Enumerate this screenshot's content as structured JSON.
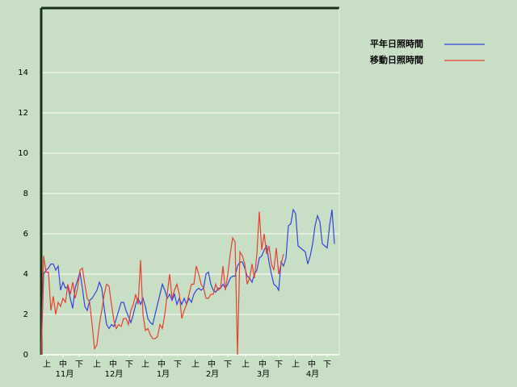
{
  "chart_data": {
    "type": "line",
    "x": [
      0,
      1.5,
      3,
      4.5,
      6,
      7.5,
      9,
      10.5,
      12,
      13.5,
      15,
      16.5,
      18,
      19.5,
      21,
      22.5,
      24,
      25.5,
      27,
      28.5,
      30,
      31.5,
      33,
      34.5,
      36,
      37.5,
      39,
      40.5,
      42,
      43.5,
      45,
      46.5,
      48,
      49.5,
      51,
      52.5,
      54,
      55.5,
      57,
      58.5,
      60,
      61.5,
      63,
      64.5,
      66,
      67.5,
      69,
      70.5,
      72,
      73.5,
      75,
      76.5,
      78,
      79.5,
      81,
      82.5,
      84,
      85.5,
      87,
      88.5,
      90,
      91.5,
      93,
      94.5,
      96,
      97.5,
      99,
      100.5,
      102,
      103.5,
      105,
      106.5,
      108,
      109.5,
      111,
      112.5,
      114,
      115.5,
      117,
      118.5,
      120,
      121.5,
      123,
      124.5,
      126,
      127.5,
      129,
      130.5,
      132,
      133.5,
      135,
      136.5,
      138,
      139.5,
      141,
      142.5,
      144,
      145.5,
      147,
      148.5,
      150,
      151.5,
      153,
      154.5,
      156,
      157.5,
      159,
      160.5,
      162,
      163.5,
      165,
      166.5,
      168,
      169.5,
      171,
      172.5,
      174,
      175.5,
      177,
      178.5,
      180,
      181.5
    ],
    "xlim": [
      0,
      184.5
    ],
    "xticks": [
      {
        "value": 3.5,
        "label": "上"
      },
      {
        "value": 13.5,
        "label": "中"
      },
      {
        "value": 23.5,
        "label": "下"
      },
      {
        "value": 34.5,
        "label": "上"
      },
      {
        "value": 44.5,
        "label": "中"
      },
      {
        "value": 54.5,
        "label": "下"
      },
      {
        "value": 64.5,
        "label": "上"
      },
      {
        "value": 74.5,
        "label": "中"
      },
      {
        "value": 84.5,
        "label": "下"
      },
      {
        "value": 95.5,
        "label": "上"
      },
      {
        "value": 105.5,
        "label": "中"
      },
      {
        "value": 115.5,
        "label": "下"
      },
      {
        "value": 126.5,
        "label": "上"
      },
      {
        "value": 137,
        "label": "中"
      },
      {
        "value": 147,
        "label": "下"
      },
      {
        "value": 157.5,
        "label": "上"
      },
      {
        "value": 167.5,
        "label": "中"
      },
      {
        "value": 177,
        "label": "下"
      }
    ],
    "month_labels": [
      {
        "value": 14.5,
        "label": "11月"
      },
      {
        "value": 45,
        "label": "12月"
      },
      {
        "value": 75.5,
        "label": "1月"
      },
      {
        "value": 106,
        "label": "2月"
      },
      {
        "value": 137.5,
        "label": "3月"
      },
      {
        "value": 168,
        "label": "4月"
      }
    ],
    "ylim": [
      0,
      17.2
    ],
    "yticks": [
      0,
      2,
      4,
      6,
      8,
      10,
      12,
      14
    ],
    "grid": true,
    "series": [
      {
        "name": "平年日照時間",
        "color": "#3344dd",
        "values": [
          0,
          4.0,
          4.2,
          4.3,
          4.5,
          4.5,
          4.2,
          4.4,
          3.2,
          3.6,
          3.3,
          3.4,
          2.8,
          2.3,
          3.3,
          3.7,
          4.1,
          3.3,
          2.4,
          2.2,
          2.7,
          2.8,
          3.0,
          3.2,
          3.6,
          3.3,
          2.3,
          1.5,
          1.3,
          1.5,
          1.4,
          1.8,
          2.2,
          2.6,
          2.6,
          2.2,
          1.9,
          1.6,
          2.0,
          2.5,
          2.8,
          2.5,
          2.8,
          2.4,
          1.8,
          1.6,
          1.5,
          2.0,
          2.5,
          3.0,
          3.5,
          3.2,
          2.8,
          3.0,
          2.7,
          3.0,
          2.5,
          2.8,
          2.5,
          2.8,
          2.5,
          2.8,
          2.6,
          3.0,
          3.2,
          3.3,
          3.2,
          3.3,
          4.0,
          4.1,
          3.5,
          3.2,
          3.1,
          3.3,
          3.3,
          3.5,
          3.3,
          3.5,
          3.8,
          3.9,
          3.9,
          4.4,
          4.6,
          4.6,
          4.3,
          3.9,
          3.8,
          3.6,
          4.0,
          4.2,
          4.8,
          4.9,
          5.2,
          5.4,
          4.6,
          4.0,
          3.5,
          3.4,
          3.2,
          4.6,
          4.4,
          4.8,
          6.4,
          6.5,
          7.2,
          7.0,
          5.4,
          5.3,
          5.2,
          5.1,
          4.5,
          4.9,
          5.5,
          6.4,
          6.9,
          6.6,
          5.5,
          5.4,
          5.3,
          6.4,
          7.2,
          5.5
        ]
      },
      {
        "name": "移動日照時間",
        "color": "#e84030",
        "values": [
          0,
          4.9,
          4.1,
          4.1,
          2.2,
          2.9,
          2.0,
          2.6,
          2.4,
          2.8,
          2.6,
          3.5,
          3.0,
          3.6,
          2.8,
          3.3,
          4.2,
          4.3,
          3.5,
          2.8,
          2.6,
          1.5,
          0.3,
          0.5,
          1.5,
          2.2,
          3.0,
          3.5,
          3.4,
          2.5,
          1.7,
          1.3,
          1.5,
          1.4,
          1.8,
          1.8,
          1.5,
          2.2,
          2.5,
          3.0,
          2.5,
          4.7,
          2.0,
          1.2,
          1.3,
          1.0,
          0.8,
          0.8,
          0.9,
          1.5,
          1.3,
          2.0,
          3.0,
          4.0,
          2.8,
          3.2,
          3.5,
          3.0,
          1.8,
          2.2,
          2.5,
          3.0,
          3.5,
          3.5,
          4.4,
          4.0,
          3.5,
          3.3,
          2.8,
          2.8,
          3.0,
          3.0,
          3.5,
          3.2,
          3.3,
          4.4,
          3.2,
          4.0,
          5.0,
          5.8,
          5.6,
          0,
          5.1,
          4.9,
          4.5,
          3.5,
          3.8,
          4.5,
          3.8,
          5.0,
          7.1,
          5.2,
          6.0,
          5.0,
          5.4,
          4.5,
          4.2,
          5.3,
          4.0,
          4.5,
          5.0,
          null,
          null,
          null,
          null,
          null,
          null,
          null,
          null,
          null,
          null,
          null,
          null,
          null,
          null,
          null,
          null,
          null,
          null,
          null,
          null,
          null
        ]
      }
    ]
  }
}
